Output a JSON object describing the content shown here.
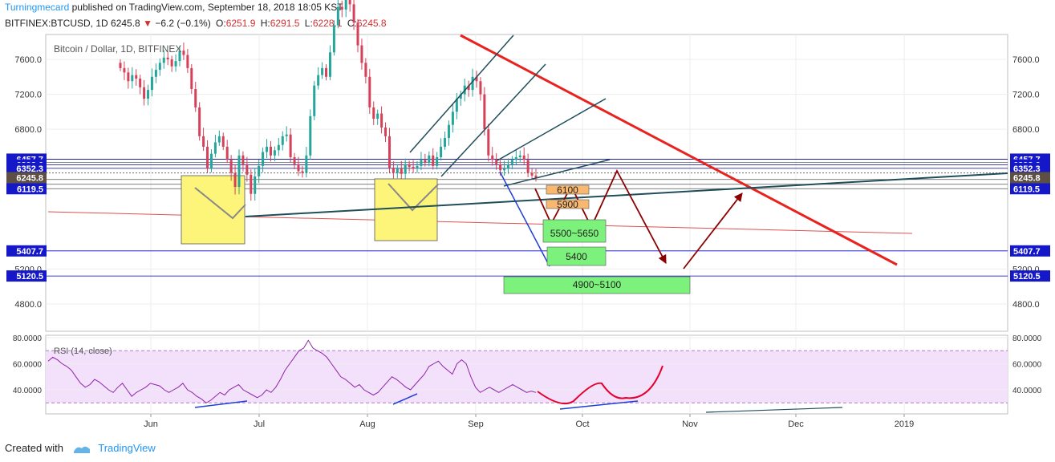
{
  "header": {
    "author": "Turningmecard",
    "published": "published on TradingView.com, September 18, 2018 18:05 KST",
    "symbol": "BITFINEX:BTCUSD, 1D",
    "last": "6245.8",
    "change": "−6.2 (−0.1%)",
    "o_label": "O:",
    "o": "6251.9",
    "h_label": "H:",
    "h": "6291.5",
    "l_label": "L:",
    "l": "6228.1",
    "c_label": "C:",
    "c": "6245.8"
  },
  "footer": {
    "created_with": "Created with",
    "brand": "TradingView"
  },
  "colors": {
    "up": "#26a69a",
    "down": "#d6415a",
    "blue_line": "#0000cc",
    "trend_dark": "#1f4e5a",
    "trend_red": "#e8231f",
    "arrow": "#8b0000",
    "rsi_line": "#8e24aa",
    "rsi_band": "#f3e0fa",
    "box_yellow": "#fdf57a",
    "box_green": "#7cf27c",
    "box_orange": "#f9b870",
    "price_tag": "#5d4f44"
  },
  "chart_data": [
    {
      "type": "candlestick",
      "title": "Bitcoin / Dollar, 1D, BITFINEX",
      "y_axis_ticks": [
        "7600.0",
        "7200.0",
        "6800.0",
        "5200.0",
        "4800.0"
      ],
      "x_axis_ticks": [
        "Jun",
        "Jul",
        "Aug",
        "Sep",
        "Oct",
        "Nov",
        "Dec",
        "2019"
      ],
      "ylim": [
        4700,
        7900
      ],
      "price_levels": [
        "6457.7",
        "6392.6",
        "6352.3",
        "6225.2",
        "6170.1",
        "6119.5",
        "5407.7",
        "5120.5"
      ],
      "current_price": "6245.8",
      "annotations": [
        "6100",
        "5900",
        "5500~5650",
        "5400",
        "4900~5100"
      ],
      "series_close_approx": [
        7500,
        7450,
        7350,
        7420,
        7380,
        7280,
        7150,
        7250,
        7400,
        7480,
        7560,
        7620,
        7600,
        7520,
        7580,
        7700,
        7650,
        7500,
        7260,
        7050,
        6720,
        6600,
        6350,
        6520,
        6650,
        6720,
        6600,
        6450,
        6300,
        6140,
        6500,
        6400,
        6280,
        6060,
        6260,
        6380,
        6540,
        6600,
        6500,
        6560,
        6620,
        6720,
        6740,
        6480,
        6400,
        6320,
        6300,
        6500,
        6950,
        7300,
        7420,
        7500,
        7400,
        7680,
        7990,
        8200,
        8170,
        8400,
        8230,
        8020,
        7760,
        7560,
        7400,
        7050,
        6920,
        6980,
        6820,
        6720,
        6360,
        6300,
        6350,
        6290,
        6400,
        6370,
        6350,
        6380,
        6450,
        6420,
        6500,
        6380,
        6480,
        6600,
        6700,
        6850,
        7000,
        7150,
        7200,
        7300,
        7250,
        7400,
        7350,
        7200,
        6800,
        6500,
        6450,
        6400,
        6330,
        6350,
        6400,
        6450,
        6480,
        6500,
        6450,
        6300,
        6270,
        6245.8
      ]
    },
    {
      "type": "line",
      "title": "RSI (14, close)",
      "y_axis_ticks": [
        "80.0000",
        "60.0000",
        "40.0000"
      ],
      "ylim": [
        25,
        82
      ],
      "bands": [
        30,
        70
      ],
      "values": [
        62,
        65,
        63,
        60,
        58,
        55,
        50,
        45,
        42,
        44,
        48,
        46,
        43,
        40,
        38,
        42,
        45,
        40,
        35,
        38,
        40,
        42,
        45,
        44,
        43,
        40,
        38,
        40,
        42,
        45,
        40,
        38,
        35,
        33,
        30,
        32,
        35,
        38,
        36,
        40,
        42,
        44,
        40,
        38,
        36,
        34,
        36,
        40,
        38,
        42,
        48,
        55,
        60,
        65,
        70,
        72,
        78,
        72,
        70,
        68,
        65,
        60,
        55,
        50,
        48,
        45,
        42,
        44,
        40,
        38,
        36,
        38,
        42,
        46,
        50,
        48,
        45,
        42,
        40,
        44,
        48,
        52,
        58,
        60,
        62,
        58,
        55,
        52,
        60,
        63,
        60,
        50,
        42,
        38,
        40,
        42,
        40,
        38,
        40,
        42,
        44,
        42,
        40,
        38,
        39,
        38
      ]
    }
  ]
}
